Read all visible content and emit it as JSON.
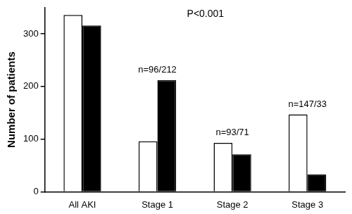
{
  "chart_data": {
    "type": "bar",
    "y_label": "Number of patients",
    "categories": [
      "All AKI",
      "Stage 1",
      "Stage 2",
      "Stage 3"
    ],
    "series": [
      {
        "color": "#ffffff",
        "values": [
          336,
          96,
          93,
          147
        ]
      },
      {
        "color": "#000000",
        "values": [
          316,
          212,
          71,
          33
        ]
      }
    ],
    "ylim": [
      0,
      350
    ],
    "yticks": [
      0,
      100,
      200,
      300
    ],
    "grid": false,
    "annotations": [
      {
        "text": "P<0.001"
      },
      {
        "text": "n=96/212",
        "category": "Stage 1"
      },
      {
        "text": "n=93/71",
        "category": "Stage 2"
      },
      {
        "text": "n=147/33",
        "category": "Stage 3"
      }
    ]
  }
}
